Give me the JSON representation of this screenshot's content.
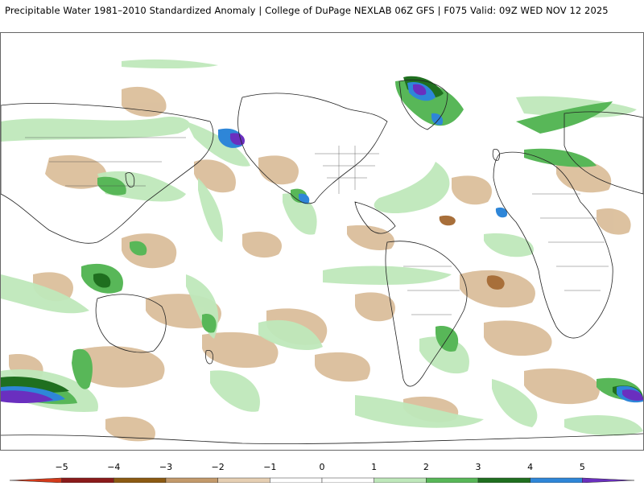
{
  "header": {
    "title": "Precipitable Water 1981–2010 Standardized Anomaly | College of DuPage NEXLAB  06Z GFS | F075 Valid: 09Z WED NOV 12 2025"
  },
  "colorbar": {
    "ticks": [
      {
        "label": "−5",
        "value": -5
      },
      {
        "label": "−4",
        "value": -4
      },
      {
        "label": "−3",
        "value": -3
      },
      {
        "label": "−2",
        "value": -2
      },
      {
        "label": "−1",
        "value": -1
      },
      {
        "label": "0",
        "value": 0
      },
      {
        "label": "1",
        "value": 1
      },
      {
        "label": "2",
        "value": 2
      },
      {
        "label": "3",
        "value": 3
      },
      {
        "label": "4",
        "value": 4
      },
      {
        "label": "5",
        "value": 5
      }
    ],
    "bins": [
      {
        "from": -6,
        "to": -5,
        "color": "#d33a1a"
      },
      {
        "from": -5,
        "to": -4,
        "color": "#8b1a1a"
      },
      {
        "from": -4,
        "to": -3,
        "color": "#8c5a12"
      },
      {
        "from": -3,
        "to": -2,
        "color": "#c39a6b"
      },
      {
        "from": -2,
        "to": -1,
        "color": "#e6cfb3"
      },
      {
        "from": -1,
        "to": 0,
        "color": "#ffffff"
      },
      {
        "from": 0,
        "to": 1,
        "color": "#ffffff"
      },
      {
        "from": 1,
        "to": 2,
        "color": "#bfe8bb"
      },
      {
        "from": 2,
        "to": 3,
        "color": "#58b758"
      },
      {
        "from": 3,
        "to": 4,
        "color": "#1f6f1f"
      },
      {
        "from": 4,
        "to": 5,
        "color": "#2e86d8"
      },
      {
        "from": 5,
        "to": 6,
        "color": "#6a2fbf"
      }
    ]
  },
  "map": {
    "land_color": "#ffffff",
    "border_color": "#222222"
  }
}
